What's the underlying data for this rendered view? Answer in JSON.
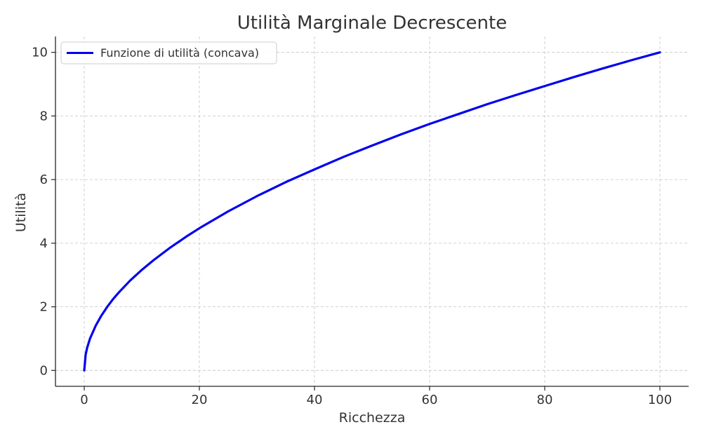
{
  "chart_data": {
    "type": "line",
    "title": "Utilità Marginale Decrescente",
    "xlabel": "Ricchezza",
    "ylabel": "Utilità",
    "xlim": [
      -5,
      105
    ],
    "ylim": [
      -0.5,
      10.5
    ],
    "x_ticks": [
      0,
      20,
      40,
      60,
      80,
      100
    ],
    "y_ticks": [
      0,
      2,
      4,
      6,
      8,
      10
    ],
    "x_tick_labels": [
      "0",
      "20",
      "40",
      "60",
      "80",
      "100"
    ],
    "y_tick_labels": [
      "0",
      "2",
      "4",
      "6",
      "8",
      "10"
    ],
    "grid": true,
    "legend_position": "top-left",
    "series": [
      {
        "name": "Funzione di utilità (concava)",
        "color": "#0000ee",
        "x": [
          0,
          0.25,
          0.5,
          1,
          2,
          3,
          4,
          5,
          6,
          8,
          10,
          12,
          15,
          18,
          20,
          25,
          30,
          35,
          40,
          45,
          50,
          55,
          60,
          65,
          70,
          75,
          80,
          85,
          90,
          95,
          100
        ],
        "y": [
          0,
          0.5,
          0.71,
          1,
          1.41,
          1.73,
          2,
          2.24,
          2.45,
          2.83,
          3.16,
          3.46,
          3.87,
          4.24,
          4.47,
          5,
          5.48,
          5.92,
          6.32,
          6.71,
          7.07,
          7.42,
          7.75,
          8.06,
          8.37,
          8.66,
          8.94,
          9.22,
          9.49,
          9.75,
          10
        ]
      }
    ]
  }
}
